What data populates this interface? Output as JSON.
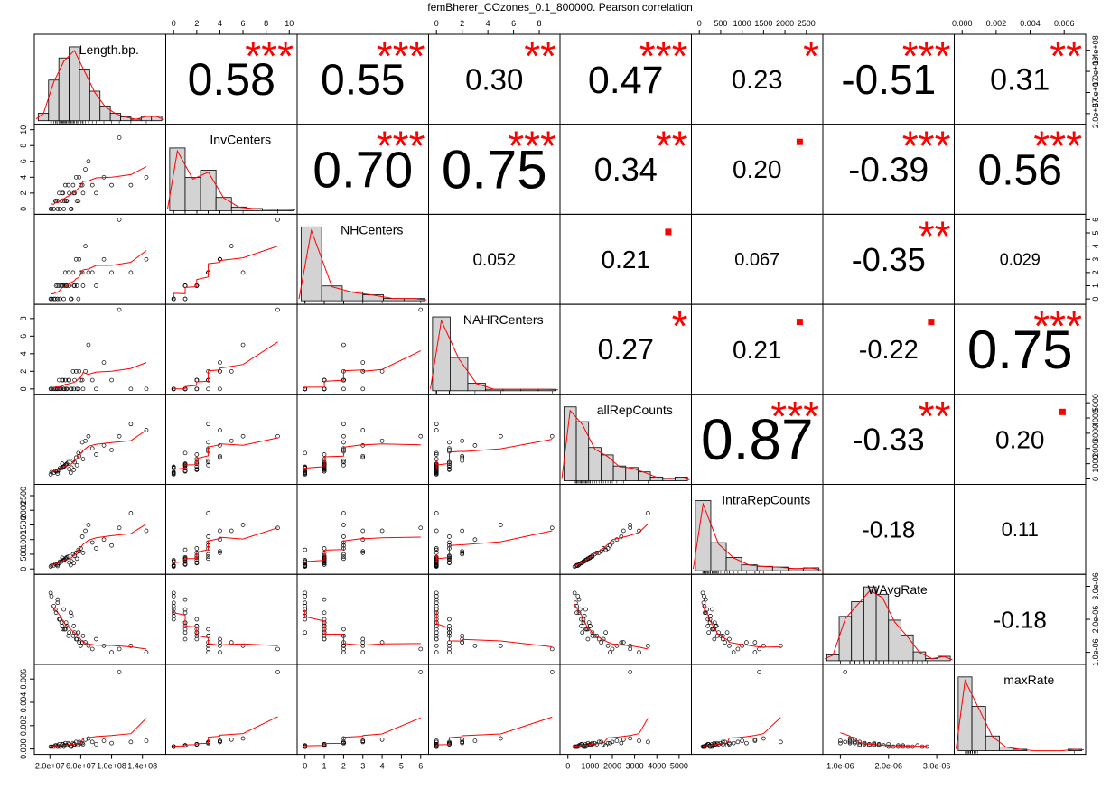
{
  "title": "femBherer_COzones_0.1_800000. Pearson correlation",
  "chart_data": {
    "type": "scatter",
    "variables": [
      "Length.bp.",
      "InvCenters",
      "NHCenters",
      "NAHRCenters",
      "allRepCounts",
      "IntraRepCounts",
      "WAvgRate",
      "maxRate"
    ],
    "correlations": [
      [
        null,
        0.58,
        0.55,
        0.3,
        0.47,
        0.23,
        -0.51,
        0.31
      ],
      [
        null,
        null,
        0.7,
        0.75,
        0.34,
        0.2,
        -0.39,
        0.56
      ],
      [
        null,
        null,
        null,
        0.052,
        0.21,
        0.067,
        -0.35,
        0.029
      ],
      [
        null,
        null,
        null,
        null,
        0.27,
        0.21,
        -0.22,
        0.75
      ],
      [
        null,
        null,
        null,
        null,
        null,
        0.87,
        -0.33,
        0.2
      ],
      [
        null,
        null,
        null,
        null,
        null,
        null,
        -0.18,
        0.11
      ],
      [
        null,
        null,
        null,
        null,
        null,
        null,
        null,
        -0.18
      ]
    ],
    "correlation_labels": [
      [
        null,
        "0.58",
        "0.55",
        "0.30",
        "0.47",
        "0.23",
        "-0.51",
        "0.31"
      ],
      [
        null,
        null,
        "0.70",
        "0.75",
        "0.34",
        "0.20",
        "-0.39",
        "0.56"
      ],
      [
        null,
        null,
        null,
        "0.052",
        "0.21",
        "0.067",
        "-0.35",
        "0.029"
      ],
      [
        null,
        null,
        null,
        null,
        "0.27",
        "0.21",
        "-0.22",
        "0.75"
      ],
      [
        null,
        null,
        null,
        null,
        null,
        "0.87",
        "-0.33",
        "0.20"
      ],
      [
        null,
        null,
        null,
        null,
        null,
        null,
        "-0.18",
        "0.11"
      ],
      [
        null,
        null,
        null,
        null,
        null,
        null,
        null,
        "-0.18"
      ]
    ],
    "significance": [
      [
        null,
        "***",
        "***",
        "**",
        "***",
        "*",
        "***",
        "**"
      ],
      [
        null,
        null,
        "***",
        "***",
        "**",
        ".",
        "***",
        "***"
      ],
      [
        null,
        null,
        null,
        "",
        ".",
        "",
        "**",
        ""
      ],
      [
        null,
        null,
        null,
        null,
        "*",
        ".",
        ".",
        "***"
      ],
      [
        null,
        null,
        null,
        null,
        null,
        "***",
        "**",
        "."
      ],
      [
        null,
        null,
        null,
        null,
        null,
        null,
        "",
        ""
      ],
      [
        null,
        null,
        null,
        null,
        null,
        null,
        null,
        ""
      ]
    ],
    "ranges": [
      [
        10000000.0,
        160000000.0
      ],
      [
        0,
        10
      ],
      [
        0,
        6
      ],
      [
        0,
        9
      ],
      [
        0,
        5200
      ],
      [
        0,
        2700
      ],
      [
        8e-07,
        3.2e-06
      ],
      [
        0,
        0.0068
      ]
    ],
    "tick_values": [
      [
        20000000.0,
        60000000.0,
        100000000.0,
        140000000.0
      ],
      [
        0,
        2,
        4,
        6,
        8,
        10
      ],
      [
        0,
        1,
        2,
        3,
        4,
        5,
        6
      ],
      [
        0,
        2,
        4,
        6,
        8
      ],
      [
        0,
        1000,
        2000,
        3000,
        4000,
        5000
      ],
      [
        0,
        500,
        1000,
        1500,
        2000,
        2500
      ],
      [
        1e-06,
        2e-06,
        3e-06
      ],
      [
        0,
        0.002,
        0.004,
        0.006
      ]
    ],
    "tick_labels": [
      [
        "2.0e+07",
        "6.0e+07",
        "1.0e+08",
        "1.4e+08"
      ],
      [
        "0",
        "2",
        "4",
        "6",
        "8",
        "10"
      ],
      [
        "0",
        "1",
        "2",
        "3",
        "4",
        "5",
        "6"
      ],
      [
        "0",
        "2",
        "4",
        "6",
        "8"
      ],
      [
        "0",
        "1000",
        "2000",
        "3000",
        "4000",
        "5000"
      ],
      [
        "0",
        "500",
        "1000",
        "1500",
        "2000",
        "2500"
      ],
      [
        "1.0e-06",
        "2.0e-06",
        "3.0e-06"
      ],
      [
        "0.000",
        "0.002",
        "0.004",
        "0.006"
      ]
    ],
    "histograms": [
      [
        0.1,
        0.55,
        0.85,
        1.0,
        0.7,
        0.4,
        0.2,
        0.1,
        0.05,
        0.02,
        0.06,
        0.06
      ],
      [
        0.85,
        0.45,
        0.55,
        0.18,
        0.05,
        0.03,
        0.02,
        0.02
      ],
      [
        1.0,
        0.2,
        0.12,
        0.08,
        0.03,
        0.03
      ],
      [
        1.0,
        0.45,
        0.1,
        0.02,
        0.02,
        0.02,
        0.02
      ],
      [
        1.0,
        0.8,
        0.45,
        0.35,
        0.2,
        0.18,
        0.12,
        0.05,
        0.03,
        0.05
      ],
      [
        0.95,
        0.38,
        0.18,
        0.08,
        0.06,
        0.05,
        0.03,
        0.04
      ],
      [
        0.08,
        0.6,
        0.8,
        1.0,
        0.9,
        0.55,
        0.35,
        0.12,
        0.03,
        0.06
      ],
      [
        1.0,
        0.6,
        0.2,
        0.05,
        0.02,
        0.0,
        0.0,
        0.0,
        0.02
      ]
    ],
    "observations": [
      [
        21000000.0,
        25000000.0,
        28000000.0,
        30000000.0,
        32000000.0,
        35000000.0,
        38000000.0,
        40000000.0,
        42000000.0,
        45000000.0,
        48000000.0,
        50000000.0,
        52000000.0,
        55000000.0,
        58000000.0,
        60000000.0,
        63000000.0,
        66000000.0,
        70000000.0,
        75000000.0,
        80000000.0,
        90000000.0,
        100000000.0,
        110000000.0,
        125000000.0,
        145000000.0,
        30000000.0,
        33000000.0,
        37000000.0,
        41000000.0,
        44000000.0,
        47000000.0,
        51000000.0,
        54000000.0,
        57000000.0,
        62000000.0,
        22000000.0,
        27000000.0,
        36000000.0,
        39000000.0
      ],
      [
        0,
        0,
        1,
        0,
        2,
        1,
        0,
        3,
        1,
        2,
        0,
        3,
        2,
        1,
        4,
        3,
        2,
        5,
        6,
        3,
        2,
        4,
        3,
        9,
        3,
        4,
        1,
        0,
        2,
        1,
        3,
        0,
        2,
        4,
        1,
        3,
        0,
        1,
        2,
        1
      ],
      [
        0,
        0,
        1,
        0,
        1,
        1,
        0,
        2,
        1,
        1,
        0,
        2,
        1,
        1,
        3,
        2,
        1,
        4,
        2,
        2,
        1,
        3,
        2,
        6,
        2,
        3,
        1,
        0,
        1,
        1,
        2,
        0,
        1,
        3,
        0,
        2,
        0,
        0,
        1,
        1
      ],
      [
        0,
        0,
        0,
        0,
        1,
        0,
        0,
        1,
        0,
        1,
        0,
        2,
        1,
        0,
        2,
        1,
        0,
        2,
        5,
        1,
        0,
        3,
        1,
        9,
        0,
        0,
        0,
        0,
        1,
        0,
        1,
        0,
        0,
        2,
        0,
        1,
        0,
        0,
        1,
        0
      ],
      [
        300,
        400,
        500,
        350,
        600,
        700,
        800,
        900,
        1000,
        650,
        750,
        1200,
        1100,
        900,
        1500,
        1800,
        1300,
        2500,
        2800,
        2000,
        1600,
        2200,
        1900,
        2800,
        3600,
        3200,
        500,
        700,
        800,
        950,
        1100,
        400,
        600,
        1400,
        1700,
        2400,
        450,
        550,
        1000,
        850
      ],
      [
        80,
        120,
        150,
        100,
        200,
        250,
        300,
        350,
        400,
        220,
        260,
        500,
        450,
        350,
        600,
        700,
        550,
        1300,
        1500,
        900,
        700,
        1000,
        800,
        1400,
        1900,
        1300,
        150,
        250,
        300,
        360,
        420,
        130,
        200,
        550,
        650,
        1100,
        110,
        180,
        380,
        320
      ],
      [
        2.8e-06,
        2.4e-06,
        2.2e-06,
        2.5e-06,
        2e-06,
        1.9e-06,
        2.3e-06,
        1.7e-06,
        1.8e-06,
        1.6e-06,
        2.1e-06,
        1.5e-06,
        1.6e-06,
        1.4e-06,
        1.3e-06,
        1.2e-06,
        1.5e-06,
        1.3e-06,
        1.2e-06,
        1.1e-06,
        1.4e-06,
        1.2e-06,
        1e-06,
        1.1e-06,
        1.2e-06,
        1e-06,
        2.6e-06,
        2e-06,
        1.7e-06,
        1.9e-06,
        1.5e-06,
        2.2e-06,
        1.8e-06,
        1.4e-06,
        1.6e-06,
        1.3e-06,
        2.7e-06,
        2.3e-06,
        1.8e-06,
        1.7e-06
      ],
      [
        0.0002,
        0.0002,
        0.0003,
        0.0002,
        0.0004,
        0.0003,
        0.0002,
        0.0005,
        0.0003,
        0.0004,
        0.0002,
        0.0005,
        0.0004,
        0.0003,
        0.0006,
        0.0005,
        0.0004,
        0.0008,
        0.0009,
        0.0006,
        0.0004,
        0.0007,
        0.0005,
        0.0066,
        0.0006,
        0.0007,
        0.0003,
        0.0002,
        0.0004,
        0.0003,
        0.0005,
        0.0002,
        0.0004,
        0.0006,
        0.0003,
        0.0005,
        0.0002,
        0.0003,
        0.0004,
        0.0003
      ]
    ]
  }
}
